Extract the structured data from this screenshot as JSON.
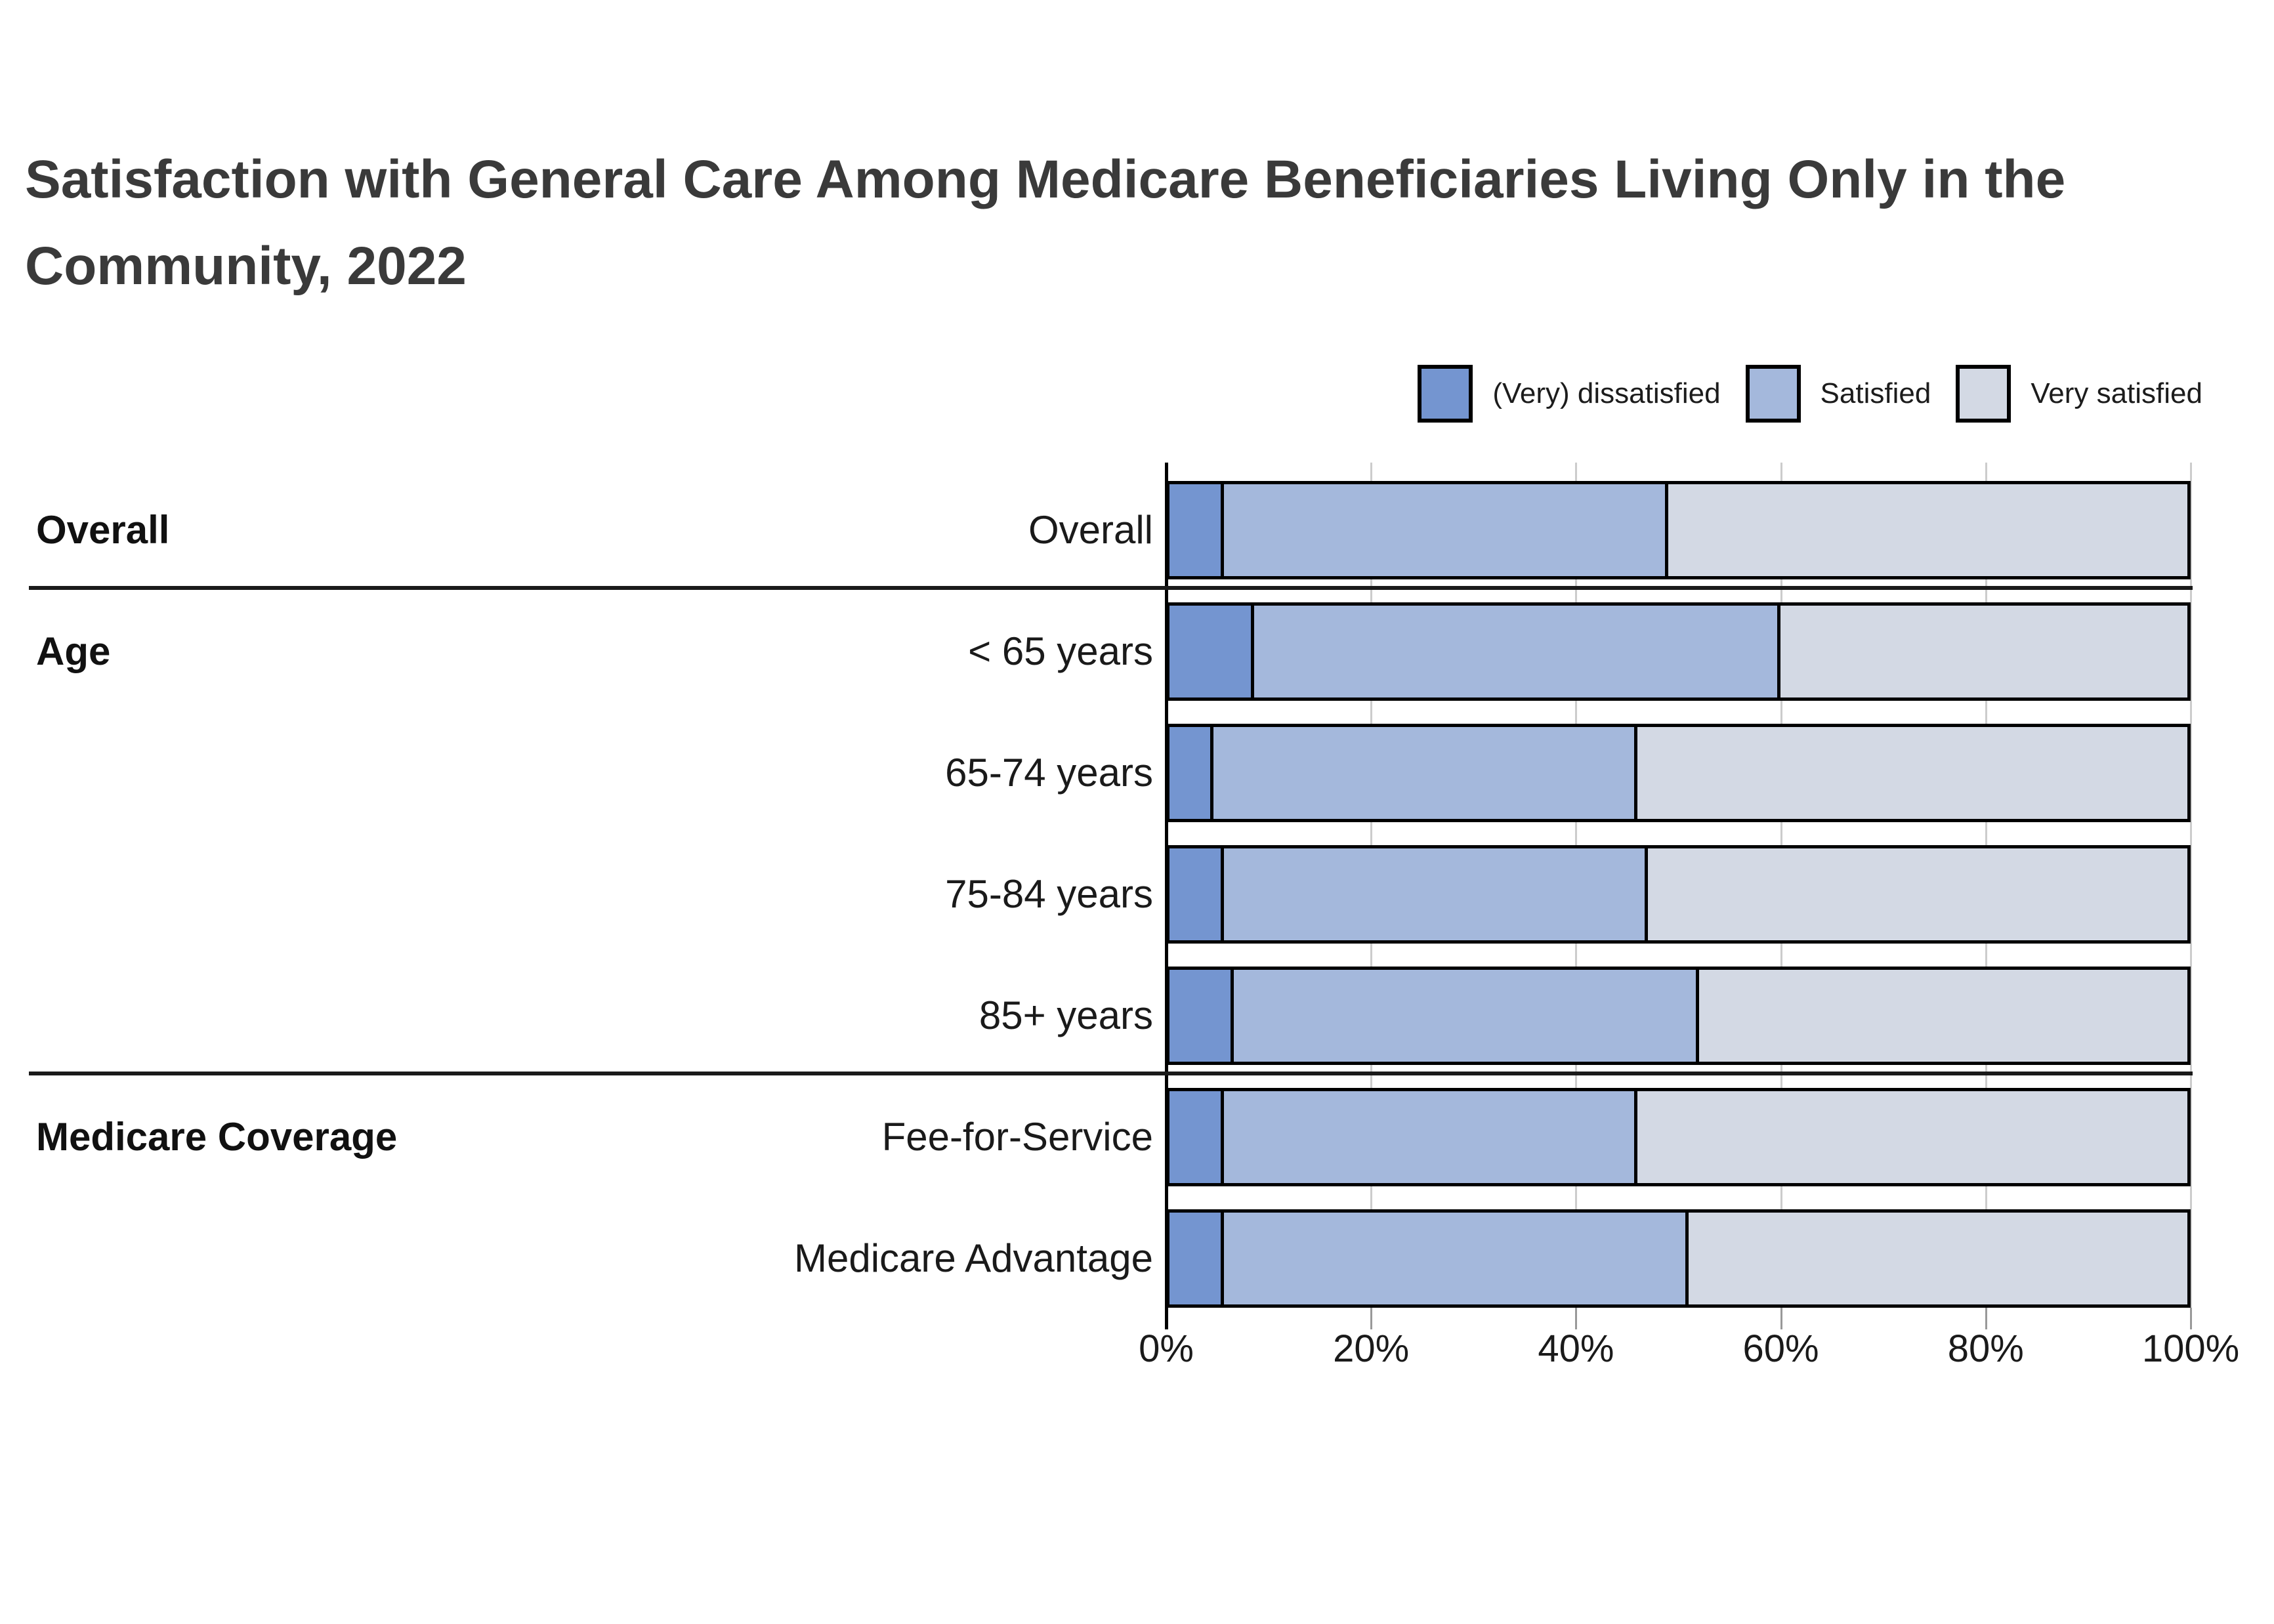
{
  "title": "Satisfaction with General Care Among Medicare Beneficiaries Living Only in the Community, 2022",
  "title_lines": [
    "Satisfaction with General Care Among Medicare Beneficiaries Living Only in the",
    "Community, 2022"
  ],
  "legend": [
    {
      "label": "(Very) dissatisfied",
      "color": "#7495d0"
    },
    {
      "label": "Satisfied",
      "color": "#a4b8dc"
    },
    {
      "label": "Very satisfied",
      "color": "#d3d9e4"
    }
  ],
  "colors": {
    "dissatisfied": "#7495d0",
    "satisfied": "#a4b8dc",
    "very_satisfied": "#d3d9e4",
    "bar_border": "#000000",
    "gridline": "#cccccc",
    "tick": "#999999",
    "title_text": "#3a3a3a",
    "label_text": "#1a1a1a"
  },
  "chart_data": {
    "type": "bar",
    "orientation": "horizontal",
    "stacked": true,
    "unit": "percent",
    "title": "Satisfaction with General Care Among Medicare Beneficiaries Living Only in the Community, 2022",
    "xlabel": "",
    "ylabel": "",
    "xlim": [
      0,
      100
    ],
    "grid": true,
    "legend_position": "top-right",
    "series_names": [
      "(Very) dissatisfied",
      "Satisfied",
      "Very satisfied"
    ],
    "x_axis": {
      "tick_values": [
        0,
        20,
        40,
        60,
        80,
        100
      ],
      "tick_labels": [
        "0%",
        "20%",
        "40%",
        "60%",
        "80%",
        "100%"
      ]
    },
    "sections": [
      {
        "label": "Overall",
        "rows": [
          {
            "label": "Overall",
            "values": [
              5,
              44,
              51
            ]
          }
        ]
      },
      {
        "label": "Age",
        "rows": [
          {
            "label": "< 65 years",
            "values": [
              8,
              52,
              40
            ]
          },
          {
            "label": "65-74 years",
            "values": [
              4,
              42,
              54
            ]
          },
          {
            "label": "75-84 years",
            "values": [
              5,
              42,
              53
            ]
          },
          {
            "label": "85+ years",
            "values": [
              6,
              46,
              48
            ]
          }
        ]
      },
      {
        "label": "Medicare Coverage",
        "rows": [
          {
            "label": "Fee-for-Service",
            "values": [
              5,
              41,
              54
            ]
          },
          {
            "label": "Medicare Advantage",
            "values": [
              5,
              46,
              49
            ]
          }
        ]
      }
    ]
  }
}
